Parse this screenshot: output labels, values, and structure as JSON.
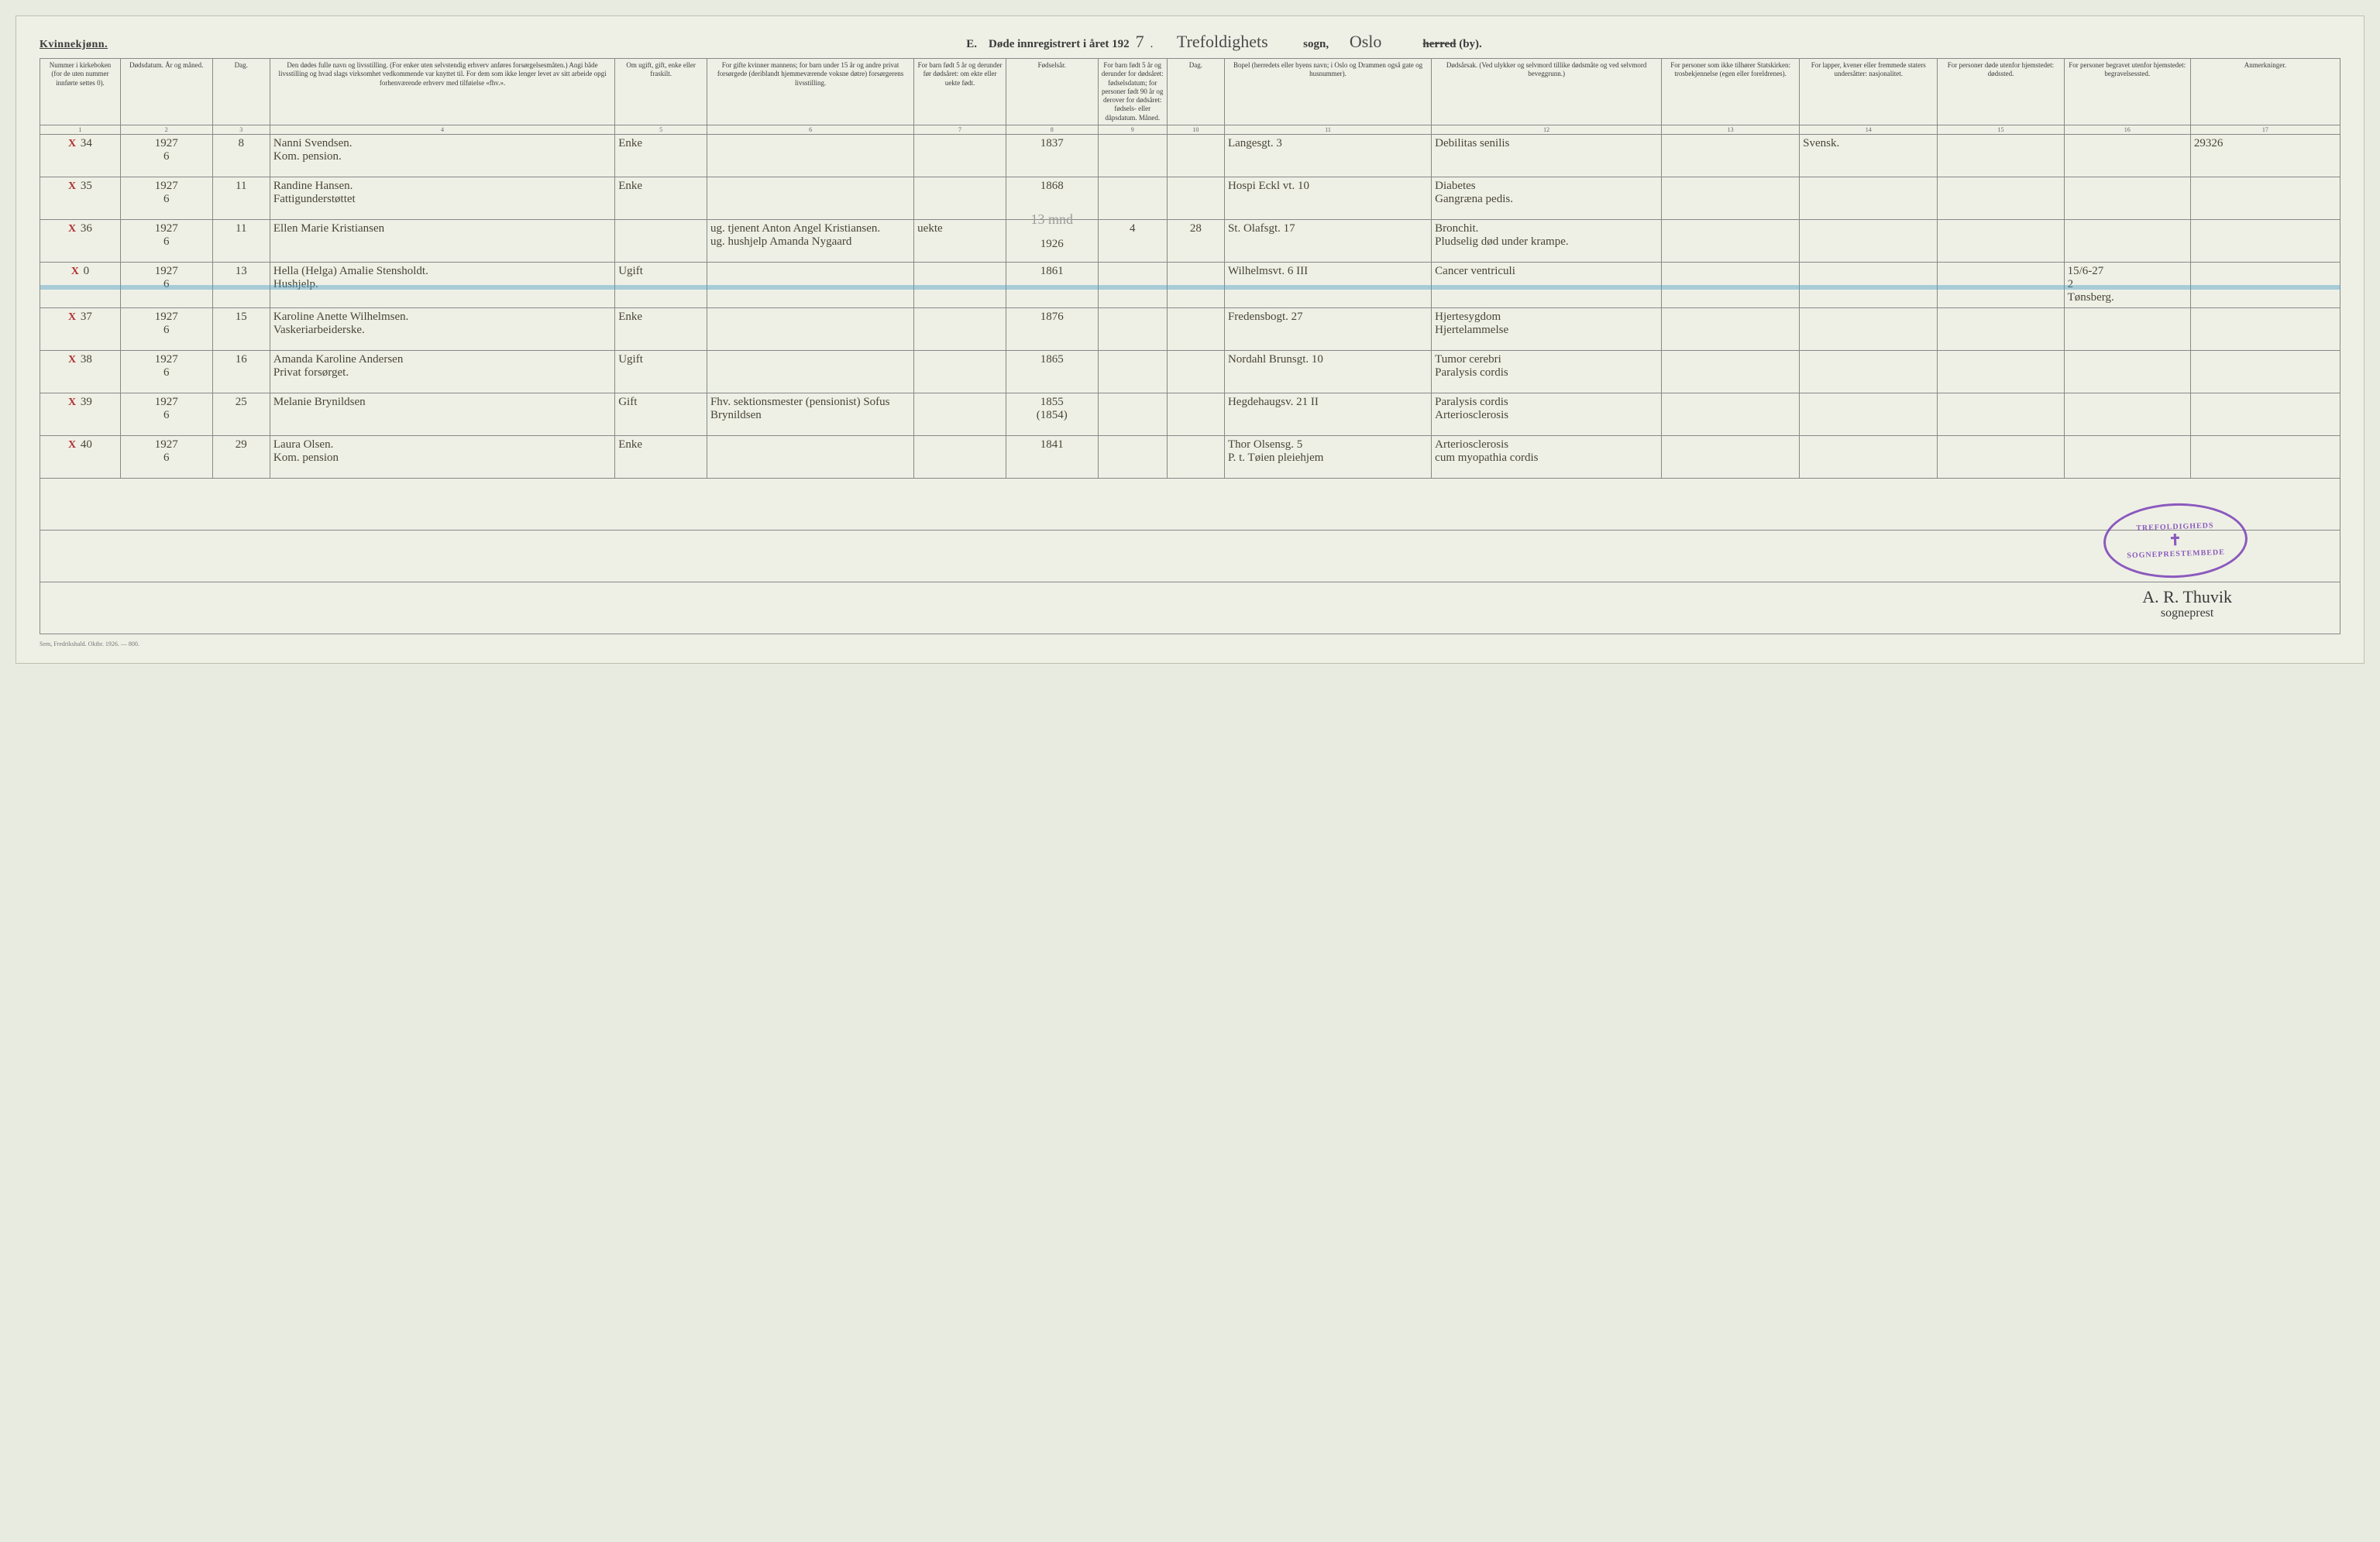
{
  "header": {
    "gender": "Kvinnekjønn.",
    "title_prefix": "E.",
    "title_printed": "Døde innregistrert i året 192",
    "year_suffix": "7",
    "parish": "Trefoldighets",
    "sogn_label": "sogn,",
    "city": "Oslo",
    "herred": "herred",
    "by": "(by)."
  },
  "columns": [
    "Nummer i kirke­boken (for de uten nummer innførte settes 0).",
    "Dødsdatum. År og måned.",
    "Dag.",
    "Den dødes fulle navn og livsstilling. (For enker uten selvstendig erhverv anføres forsørgelsesmåten.) Angi både livsstilling og hvad slags virksomhet vedkommende var knyttet til. For dem som ikke lenger levet av sitt arbeide opgi forhenværende erhverv med tilføielse «fhv.».",
    "Om ugift, gift, enke eller fraskilt.",
    "For gifte kvinner mannens; for barn under 15 år og andre privat forsørgede (deriblandt hjemmeværende voksne døtre) forsørgerens livsstilling.",
    "For barn født 5 år og derunder før døds­året: om ekte eller uekte født.",
    "Fødsels­år.",
    "For barn født 5 år og der­under for dødsåret: fødselsdatum; for personer født 90 år og derover for dødsåret: fødsels- eller dåpsdatum. Måned.",
    "Dag.",
    "Bopel (herredets eller byens navn; i Oslo og Drammen også gate og husnummer).",
    "Dødsårsak. (Ved ulykker og selv­mord tillike dødsmåte og ved selvmord beveggrunn.)",
    "For personer som ikke tilhører Statskirken: trosbekjennelse (egen eller foreldrenes).",
    "For lapper, kvener eller fremmede staters undersåtter: nasjonalitet.",
    "For personer døde utenfor hjemstedet: dødssted.",
    "For personer begravet utenfor hjemstedet: begravelsessted.",
    "Anmerkninger."
  ],
  "colnums": [
    "1",
    "2",
    "3",
    "4",
    "5",
    "6",
    "7",
    "8",
    "9",
    "10",
    "11",
    "12",
    "13",
    "14",
    "15",
    "16",
    "17"
  ],
  "rows": [
    {
      "mark": "X",
      "num": "34",
      "date": "1927\n6",
      "day": "8",
      "name": "Nanni Svendsen.\nKom. pension.",
      "civil": "Enke",
      "provider": "",
      "legit": "",
      "birth": "1837",
      "bm": "",
      "bd": "",
      "residence": "Langesgt. 3",
      "cause": "Debilitas senilis",
      "faith": "",
      "nationality": "Svensk.",
      "deathplace": "",
      "burialplace": "",
      "remarks": "29326"
    },
    {
      "mark": "X",
      "num": "35",
      "date": "1927\n6",
      "day": "11",
      "name": "Randine Hansen.\nFattigunderstøttet",
      "civil": "Enke",
      "provider": "",
      "legit": "",
      "birth": "1868",
      "bm": "",
      "bd": "",
      "residence": "Hospi Eckl vt. 10",
      "cause": "Diabetes\nGangræna pedis.",
      "faith": "",
      "nationality": "",
      "deathplace": "",
      "burialplace": "",
      "remarks": ""
    },
    {
      "mark": "X",
      "num": "36",
      "date": "1927\n6",
      "day": "11",
      "name": "Ellen Marie Kristiansen",
      "civil": "",
      "provider": "ug. tjenent Anton Angel Kristiansen.\nug. hushjelp Amanda Nygaard",
      "legit": "uekte",
      "birth": "1926",
      "bm": "4",
      "bd": "28",
      "residence": "St. Olafsgt. 17",
      "cause": "Bronchit.\nPludselig død under krampe.",
      "faith": "",
      "nationality": "",
      "deathplace": "",
      "burialplace": "",
      "remarks": ""
    },
    {
      "mark": "X",
      "num": "0",
      "date": "1927\n6",
      "day": "13",
      "name": "Hella (Helga) Amalie Stensholdt.\nHushjelp.",
      "civil": "Ugift",
      "provider": "",
      "legit": "",
      "birth": "1861",
      "bm": "",
      "bd": "",
      "residence": "Wilhelmsvt. 6 III",
      "cause": "Cancer ventriculi",
      "faith": "",
      "nationality": "",
      "deathplace": "",
      "burialplace": "15/6-27\n2\nTønsberg.",
      "remarks": "",
      "crossed": true
    },
    {
      "mark": "X",
      "num": "37",
      "date": "1927\n6",
      "day": "15",
      "name": "Karoline Anette Wilhelmsen.\nVaskeriarbeiderske.",
      "civil": "Enke",
      "provider": "",
      "legit": "",
      "birth": "1876",
      "bm": "",
      "bd": "",
      "residence": "Fredensbogt. 27",
      "cause": "Hjertesygdom\nHjertelammelse",
      "faith": "",
      "nationality": "",
      "deathplace": "",
      "burialplace": "",
      "remarks": ""
    },
    {
      "mark": "X",
      "num": "38",
      "date": "1927\n6",
      "day": "16",
      "name": "Amanda Karoline Andersen\nPrivat forsørget.",
      "civil": "Ugift",
      "provider": "",
      "legit": "",
      "birth": "1865",
      "bm": "",
      "bd": "",
      "residence": "Nordahl Brunsgt. 10",
      "cause": "Tumor cerebri\nParalysis cordis",
      "faith": "",
      "nationality": "",
      "deathplace": "",
      "burialplace": "",
      "remarks": ""
    },
    {
      "mark": "X",
      "num": "39",
      "date": "1927\n6",
      "day": "25",
      "name": "Melanie Brynildsen",
      "civil": "Gift",
      "provider": "Fhv. sektionsmester (pensionist) Sofus Brynildsen",
      "legit": "",
      "birth": "1855\n(1854)",
      "bm": "",
      "bd": "",
      "residence": "Hegdehaugsv. 21 II",
      "cause": "Paralysis cordis\nArteriosclerosis",
      "faith": "",
      "nationality": "",
      "deathplace": "",
      "burialplace": "",
      "remarks": ""
    },
    {
      "mark": "X",
      "num": "40",
      "date": "1927\n6",
      "day": "29",
      "name": "Laura Olsen.\nKom. pension",
      "civil": "Enke",
      "provider": "",
      "legit": "",
      "birth": "1841",
      "bm": "",
      "bd": "",
      "residence": "Thor Olsensg. 5\nP. t. Tøien pleiehjem",
      "cause": "Arteriosclerosis\ncum myopathia cordis",
      "faith": "",
      "nationality": "",
      "deathplace": "",
      "burialplace": "",
      "remarks": ""
    }
  ],
  "pencil_note": "13 mnd",
  "stamp": {
    "top": "TREFOLDIGHEDS",
    "bottom": "SOGNEPRESTEMBEDE"
  },
  "signature": {
    "name": "A. R. Thuvik",
    "title": "sogneprest"
  },
  "footer": "Sem, Fredrikshald. Oktbr. 1926. — 800.",
  "colwidths": [
    "3.5%",
    "4%",
    "2.5%",
    "15%",
    "4%",
    "9%",
    "4%",
    "4%",
    "3%",
    "2.5%",
    "9%",
    "10%",
    "6%",
    "6%",
    "5.5%",
    "5.5%",
    "6.5%"
  ],
  "colors": {
    "page_bg": "#eef0e5",
    "border": "#888888",
    "ink": "#4a4538",
    "red": "#b03030",
    "pencil": "#9c9c9c",
    "stamp": "#7a3fb8",
    "blue_strike": "rgba(80,160,200,0.45)"
  }
}
